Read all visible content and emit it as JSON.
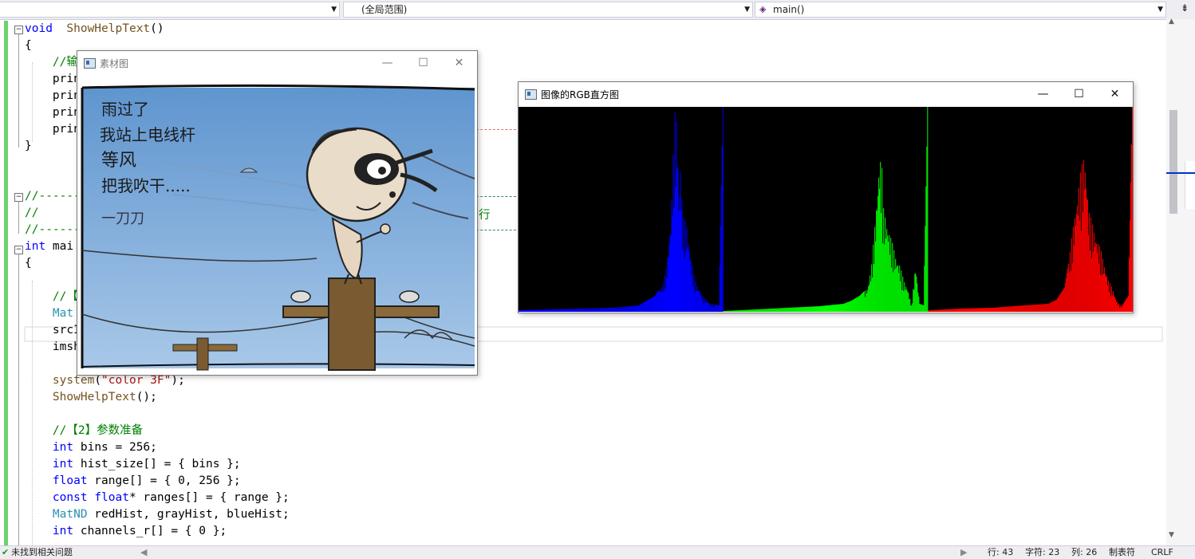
{
  "toolbar": {
    "scope_combo": "(全局范围)",
    "member_combo": "main()",
    "split_icon": "split-window-icon"
  },
  "code": [
    {
      "parts": [
        [
          "kw",
          "void"
        ],
        [
          "",
          "  "
        ],
        [
          "fn",
          "ShowHelpText"
        ],
        [
          "",
          "()"
        ]
      ]
    },
    {
      "parts": [
        [
          "",
          "{"
        ]
      ]
    },
    {
      "parts": [
        [
          "",
          "    "
        ],
        [
          "cm",
          "//输"
        ]
      ]
    },
    {
      "parts": [
        [
          "",
          "    prin"
        ]
      ]
    },
    {
      "parts": [
        [
          "",
          "    prin"
        ]
      ]
    },
    {
      "parts": [
        [
          "",
          "    prin"
        ]
      ]
    },
    {
      "parts": [
        [
          "",
          "    prin"
        ]
      ]
    },
    {
      "parts": [
        [
          "",
          "}"
        ]
      ]
    },
    {
      "parts": [
        [
          "",
          ""
        ]
      ]
    },
    {
      "parts": [
        [
          "",
          ""
        ]
      ]
    },
    {
      "parts": [
        [
          "cm",
          "//------"
        ]
      ]
    },
    {
      "parts": [
        [
          "cm",
          "//"
        ]
      ]
    },
    {
      "parts": [
        [
          "cm",
          "//------"
        ]
      ]
    },
    {
      "parts": [
        [
          "kw",
          "int"
        ],
        [
          "",
          " mai"
        ]
      ]
    },
    {
      "parts": [
        [
          "",
          "{"
        ]
      ]
    },
    {
      "parts": [
        [
          "",
          ""
        ]
      ]
    },
    {
      "parts": [
        [
          "",
          "    "
        ],
        [
          "cm",
          "//【"
        ]
      ]
    },
    {
      "parts": [
        [
          "",
          "    "
        ],
        [
          "tp",
          "Mat"
        ]
      ]
    },
    {
      "parts": [
        [
          "",
          "    srcI"
        ]
      ]
    },
    {
      "parts": [
        [
          "",
          "    imsh"
        ]
      ]
    },
    {
      "parts": [
        [
          "",
          ""
        ]
      ]
    },
    {
      "parts": [
        [
          "",
          "    "
        ],
        [
          "fn",
          "system"
        ],
        [
          "",
          "("
        ],
        [
          "st",
          "\"color 3F\""
        ],
        [
          "",
          ");"
        ]
      ]
    },
    {
      "parts": [
        [
          "",
          "    "
        ],
        [
          "fn",
          "ShowHelpText"
        ],
        [
          "",
          "();"
        ]
      ]
    },
    {
      "parts": [
        [
          "",
          ""
        ]
      ]
    },
    {
      "parts": [
        [
          "",
          "    "
        ],
        [
          "cm",
          "//【2】参数准备"
        ]
      ]
    },
    {
      "parts": [
        [
          "",
          "    "
        ],
        [
          "kw",
          "int"
        ],
        [
          "",
          " bins = 256;"
        ]
      ]
    },
    {
      "parts": [
        [
          "",
          "    "
        ],
        [
          "kw",
          "int"
        ],
        [
          "",
          " hist_size[] = { bins };"
        ]
      ]
    },
    {
      "parts": [
        [
          "",
          "    "
        ],
        [
          "kw",
          "float"
        ],
        [
          "",
          " range[] = { 0, 256 };"
        ]
      ]
    },
    {
      "parts": [
        [
          "",
          "    "
        ],
        [
          "kw",
          "const"
        ],
        [
          "",
          " "
        ],
        [
          "kw",
          "float"
        ],
        [
          "",
          "* ranges[] = { range };"
        ]
      ]
    },
    {
      "parts": [
        [
          "",
          "    "
        ],
        [
          "tp",
          "MatND"
        ],
        [
          "",
          " redHist, grayHist, blueHist;"
        ]
      ]
    },
    {
      "parts": [
        [
          "",
          "    "
        ],
        [
          "kw",
          "int"
        ],
        [
          "",
          " channels_r[] = { 0 };"
        ]
      ]
    }
  ],
  "code_fragment_right": "行",
  "source_window": {
    "title": "素材图",
    "comic_text": [
      "雨过了",
      "我站上电线杆",
      "等风",
      "把我吹干.....",
      "一刀刀"
    ]
  },
  "hist_window": {
    "title": "图像的RGB直方图"
  },
  "window_controls": {
    "minimize": "—",
    "maximize": "☐",
    "close": "✕"
  },
  "chart_data": {
    "type": "bar",
    "title": "",
    "xlabel": "",
    "ylabel": "",
    "x": "intensity 0-255 per channel",
    "grid": false,
    "series": [
      {
        "color": "#0000ff",
        "profile": [
          [
            0,
            2
          ],
          [
            40,
            3
          ],
          [
            80,
            4
          ],
          [
            120,
            5
          ],
          [
            150,
            8
          ],
          [
            160,
            14
          ],
          [
            170,
            20
          ],
          [
            180,
            35
          ],
          [
            185,
            60
          ],
          [
            190,
            120
          ],
          [
            195,
            250
          ],
          [
            198,
            240
          ],
          [
            200,
            150
          ],
          [
            202,
            190
          ],
          [
            205,
            120
          ],
          [
            210,
            110
          ],
          [
            215,
            70
          ],
          [
            220,
            40
          ],
          [
            230,
            20
          ],
          [
            240,
            10
          ],
          [
            250,
            8
          ],
          [
            255,
            256
          ]
        ]
      },
      {
        "color": "#00ff00",
        "profile": [
          [
            0,
            1
          ],
          [
            40,
            3
          ],
          [
            80,
            5
          ],
          [
            120,
            7
          ],
          [
            150,
            10
          ],
          [
            160,
            14
          ],
          [
            170,
            20
          ],
          [
            180,
            30
          ],
          [
            185,
            60
          ],
          [
            190,
            120
          ],
          [
            195,
            200
          ],
          [
            198,
            180
          ],
          [
            200,
            130
          ],
          [
            205,
            110
          ],
          [
            210,
            90
          ],
          [
            215,
            70
          ],
          [
            220,
            60
          ],
          [
            225,
            40
          ],
          [
            230,
            30
          ],
          [
            235,
            8
          ],
          [
            240,
            60
          ],
          [
            245,
            10
          ],
          [
            250,
            8
          ],
          [
            255,
            256
          ]
        ]
      },
      {
        "color": "#ff0000",
        "profile": [
          [
            0,
            2
          ],
          [
            40,
            4
          ],
          [
            80,
            5
          ],
          [
            120,
            8
          ],
          [
            150,
            10
          ],
          [
            160,
            15
          ],
          [
            170,
            30
          ],
          [
            175,
            60
          ],
          [
            180,
            100
          ],
          [
            185,
            140
          ],
          [
            190,
            175
          ],
          [
            195,
            200
          ],
          [
            198,
            170
          ],
          [
            200,
            130
          ],
          [
            205,
            110
          ],
          [
            210,
            95
          ],
          [
            215,
            80
          ],
          [
            220,
            60
          ],
          [
            225,
            40
          ],
          [
            230,
            30
          ],
          [
            235,
            15
          ],
          [
            240,
            8
          ],
          [
            245,
            12
          ],
          [
            250,
            20
          ],
          [
            255,
            256
          ]
        ]
      }
    ]
  },
  "status": {
    "issues": "未找到相关问题",
    "line": "行: 43",
    "char": "字符: 23",
    "col": "列: 26",
    "tab": "制表符",
    "eol": "CRLF"
  }
}
